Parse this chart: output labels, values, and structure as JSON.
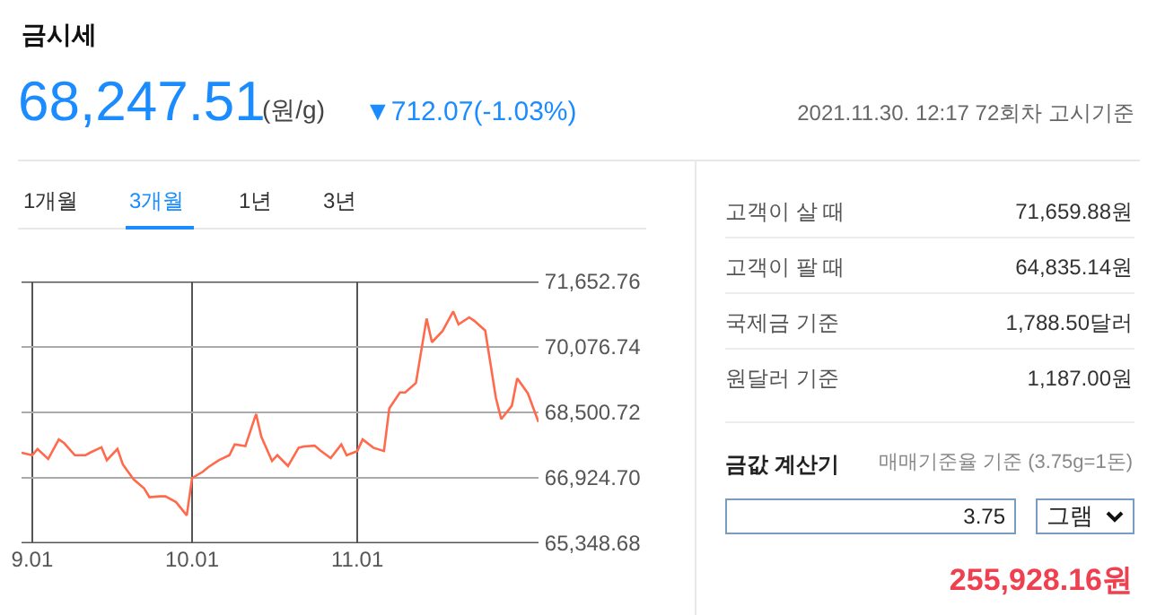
{
  "chart_data": [
    {
      "type": "other",
      "title": "금시세",
      "annotations": [
        "68,247.51",
        "(원/g)",
        "▼712.07(-1.03%)",
        "2021.11.30. 12:17 72회차 고시기준",
        "1개월",
        "3개월",
        "1년",
        "3년"
      ]
    },
    {
      "type": "line",
      "x": [
        "2021-08-30",
        "2021-09-01",
        "2021-09-02",
        "2021-09-04",
        "2021-09-06",
        "2021-09-07",
        "2021-09-09",
        "2021-09-11",
        "2021-09-12",
        "2021-09-14",
        "2021-09-15",
        "2021-09-17",
        "2021-09-18",
        "2021-09-20",
        "2021-09-22",
        "2021-09-23",
        "2021-09-25",
        "2021-09-26",
        "2021-09-28",
        "2021-09-30",
        "2021-10-01",
        "2021-10-03",
        "2021-10-04",
        "2021-10-06",
        "2021-10-08",
        "2021-10-09",
        "2021-10-11",
        "2021-10-13",
        "2021-10-14",
        "2021-10-16",
        "2021-10-17",
        "2021-10-19",
        "2021-10-21",
        "2021-10-22",
        "2021-10-24",
        "2021-10-25",
        "2021-10-27",
        "2021-10-29",
        "2021-10-30",
        "2021-11-01",
        "2021-11-02",
        "2021-11-04",
        "2021-11-06",
        "2021-11-07",
        "2021-11-09",
        "2021-11-10",
        "2021-11-12",
        "2021-11-14",
        "2021-11-15",
        "2021-11-17",
        "2021-11-19",
        "2021-11-20",
        "2021-11-22",
        "2021-11-23",
        "2021-11-25",
        "2021-11-27",
        "2021-11-28",
        "2021-11-30",
        "2021-12-01",
        "2021-12-03",
        "2021-12-05"
      ],
      "series": [
        {
          "color": "#ff6a4d",
          "values": [
            67530,
            67470,
            67620,
            67380,
            67850,
            67760,
            67470,
            67470,
            67540,
            67660,
            67350,
            67620,
            67250,
            66890,
            66670,
            66460,
            66480,
            66480,
            66340,
            66020,
            66920,
            67070,
            67180,
            67350,
            67470,
            67730,
            67690,
            68460,
            67910,
            67330,
            67470,
            67210,
            67650,
            67680,
            67700,
            67590,
            67400,
            67730,
            67470,
            67570,
            67850,
            67650,
            67570,
            68600,
            68980,
            68980,
            69210,
            70760,
            70190,
            70460,
            70930,
            70620,
            70790,
            70700,
            70470,
            68850,
            68340,
            68660,
            69320,
            68960,
            68270
          ]
        }
      ],
      "xlim": [
        "2021-08-30",
        "2021-12-05"
      ],
      "xticks": [
        {
          "value": "2021-09-01",
          "label": "9.01"
        },
        {
          "value": "2021-10-01",
          "label": "10.01"
        },
        {
          "value": "2021-11-01",
          "label": "11.01"
        }
      ],
      "ylim": [
        65348.68,
        71652.76
      ],
      "yticks": [
        {
          "value": 65348.68,
          "label": "65,348.68"
        },
        {
          "value": 66924.7,
          "label": "66,924.70"
        },
        {
          "value": 68500.72,
          "label": "68,500.72"
        },
        {
          "value": 70076.74,
          "label": "70,076.74"
        },
        {
          "value": 71652.76,
          "label": "71,652.76"
        }
      ],
      "grid": true,
      "marker": "none",
      "line_style": "solid"
    },
    {
      "type": "other",
      "annotations": [
        "고객이 살 때",
        "71,659.88원",
        "고객이 팔 때",
        "64,835.14원",
        "국제금 기준",
        "1,788.50달러",
        "원달러 기준",
        "1,187.00원",
        "금값 계산기",
        "매매기준율 기준 (3.75g=1돈)",
        "3.75",
        "그램",
        "255,928.16원"
      ]
    }
  ]
}
